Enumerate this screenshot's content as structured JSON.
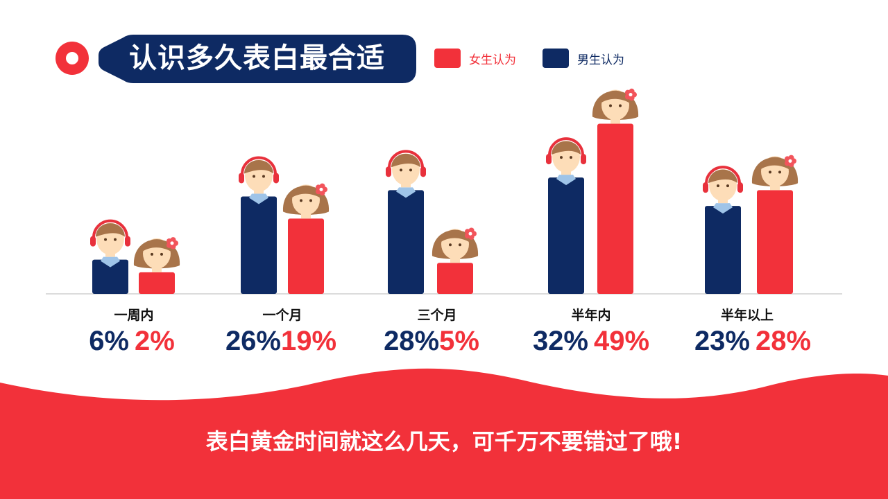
{
  "title": "认识多久表白最合适",
  "footer_text": "表白黄金时间就这么几天，可千万不要错过了哦!",
  "colors": {
    "female": "#F2313A",
    "male": "#0E2A63",
    "skin": "#FDDDB8",
    "hair": "#A8744A",
    "headphone": "#E8313C",
    "collar": "#9FC4E8"
  },
  "chart_data": {
    "type": "bar",
    "title": "认识多久表白最合适",
    "categories": [
      "一周内",
      "一个月",
      "三个月",
      "半年内",
      "半年以上"
    ],
    "series": [
      {
        "name": "男生认为",
        "color": "#0E2A63",
        "values": [
          6,
          26,
          28,
          32,
          23
        ],
        "labels": [
          "6%",
          "26%",
          "28%",
          "32%",
          "23%"
        ]
      },
      {
        "name": "女生认为",
        "color": "#F2313A",
        "values": [
          2,
          19,
          5,
          49,
          28
        ],
        "labels": [
          "2%",
          "19%",
          "5%",
          "49%",
          "28%"
        ]
      }
    ],
    "legend": [
      {
        "name": "女生认为",
        "color": "#F2313A"
      },
      {
        "name": "男生认为",
        "color": "#0E2A63"
      }
    ],
    "legend_position": "top",
    "ylim": [
      0,
      50
    ],
    "grid": false
  }
}
